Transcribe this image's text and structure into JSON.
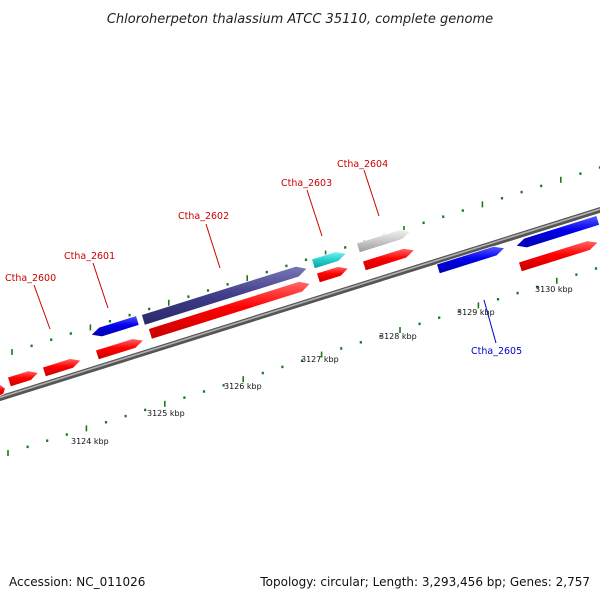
{
  "title": "Chloroherpeton thalassium ATCC 35110, complete genome",
  "footer": {
    "accession": "Accession: NC_011026",
    "summary": "Topology: circular; Length: 3,293,456 bp; Genes: 2,757"
  },
  "colors": {
    "forward_gene": "#ff0000",
    "reverse_gene": "#0000ff",
    "gene_label_forward": "#cc0000",
    "gene_label_reverse": "#0000cc",
    "tick": "#1a7a1a",
    "backbone": "#7f7f7f"
  },
  "axis": {
    "unit": "kbp",
    "tick_labels": [
      "3124 kbp",
      "3125 kbp",
      "3126 kbp",
      "3127 kbp",
      "3128 kbp",
      "3129 kbp",
      "3130 kbp"
    ]
  },
  "gene_labels": [
    {
      "name": "Ctha_2600",
      "strand": "forward"
    },
    {
      "name": "Ctha_2601",
      "strand": "forward"
    },
    {
      "name": "Ctha_2602",
      "strand": "forward"
    },
    {
      "name": "Ctha_2603",
      "strand": "forward"
    },
    {
      "name": "Ctha_2604",
      "strand": "forward"
    },
    {
      "name": "Ctha_2605",
      "strand": "reverse"
    }
  ]
}
